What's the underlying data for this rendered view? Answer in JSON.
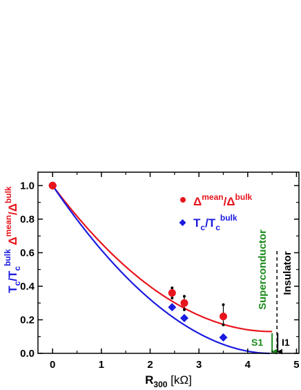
{
  "chart_data": {
    "type": "scatter",
    "xlabel": {
      "main": "R",
      "sub": "300",
      "unit": " [kΩ]"
    },
    "ylabel": {
      "blue": {
        "main": "T",
        "sub": "c",
        "sep": "/T",
        "sub2": "c",
        "sup": "bulk"
      },
      "red": {
        "main": "Δ",
        "sup": "mean",
        "sep": "/Δ",
        "sup2": "bulk"
      }
    },
    "xlim": [
      -0.3,
      5.05
    ],
    "ylim": [
      0.0,
      1.08
    ],
    "xticks": [
      "0",
      "1",
      "2",
      "3",
      "4",
      "5"
    ],
    "yticks": [
      "0.0",
      "0.2",
      "0.4",
      "0.6",
      "0.8",
      "1.0"
    ],
    "legend": {
      "position": "top-right",
      "items": [
        {
          "series": "red",
          "marker": "circle",
          "main": "Δ",
          "sup": "mean",
          "sep": "/Δ",
          "sup2": "bulk"
        },
        {
          "series": "blue",
          "marker": "diamond",
          "main": "T",
          "sub": "c",
          "sep": "/T",
          "sub2": "c",
          "sup": "bulk"
        }
      ]
    },
    "series": [
      {
        "key": "red",
        "marker": "circle",
        "color": "#e8141c",
        "x": [
          0,
          2.45,
          2.7,
          3.5
        ],
        "y": [
          1.0,
          0.36,
          0.3,
          0.22
        ],
        "err": [
          [
            0.33,
            0.39
          ],
          [
            0.26,
            0.34
          ],
          [
            0.17,
            0.29
          ]
        ]
      },
      {
        "key": "blue",
        "marker": "diamond",
        "color": "#1a1ae0",
        "x": [
          0,
          2.45,
          2.7,
          3.5
        ],
        "y": [
          1.0,
          0.275,
          0.21,
          0.095
        ]
      }
    ],
    "fits": [
      {
        "series": "red",
        "color": "#e8141c",
        "x0": 0,
        "x1": 4.5,
        "form": "0.13 + 0.87*(1-x/4.5)^2"
      },
      {
        "series": "blue",
        "color": "#1a1ae0",
        "x0": 0,
        "x1": 4.45,
        "form": "(1-x/4.45)^1.9"
      }
    ],
    "annotations": {
      "boundary_x": 4.6,
      "superconductor": "Superconductor",
      "insulator": "Insulator",
      "s1": "S1",
      "i1": "I1",
      "s1_x": 4.5,
      "i1_x": 4.6,
      "green": "#1a8a1a"
    }
  }
}
